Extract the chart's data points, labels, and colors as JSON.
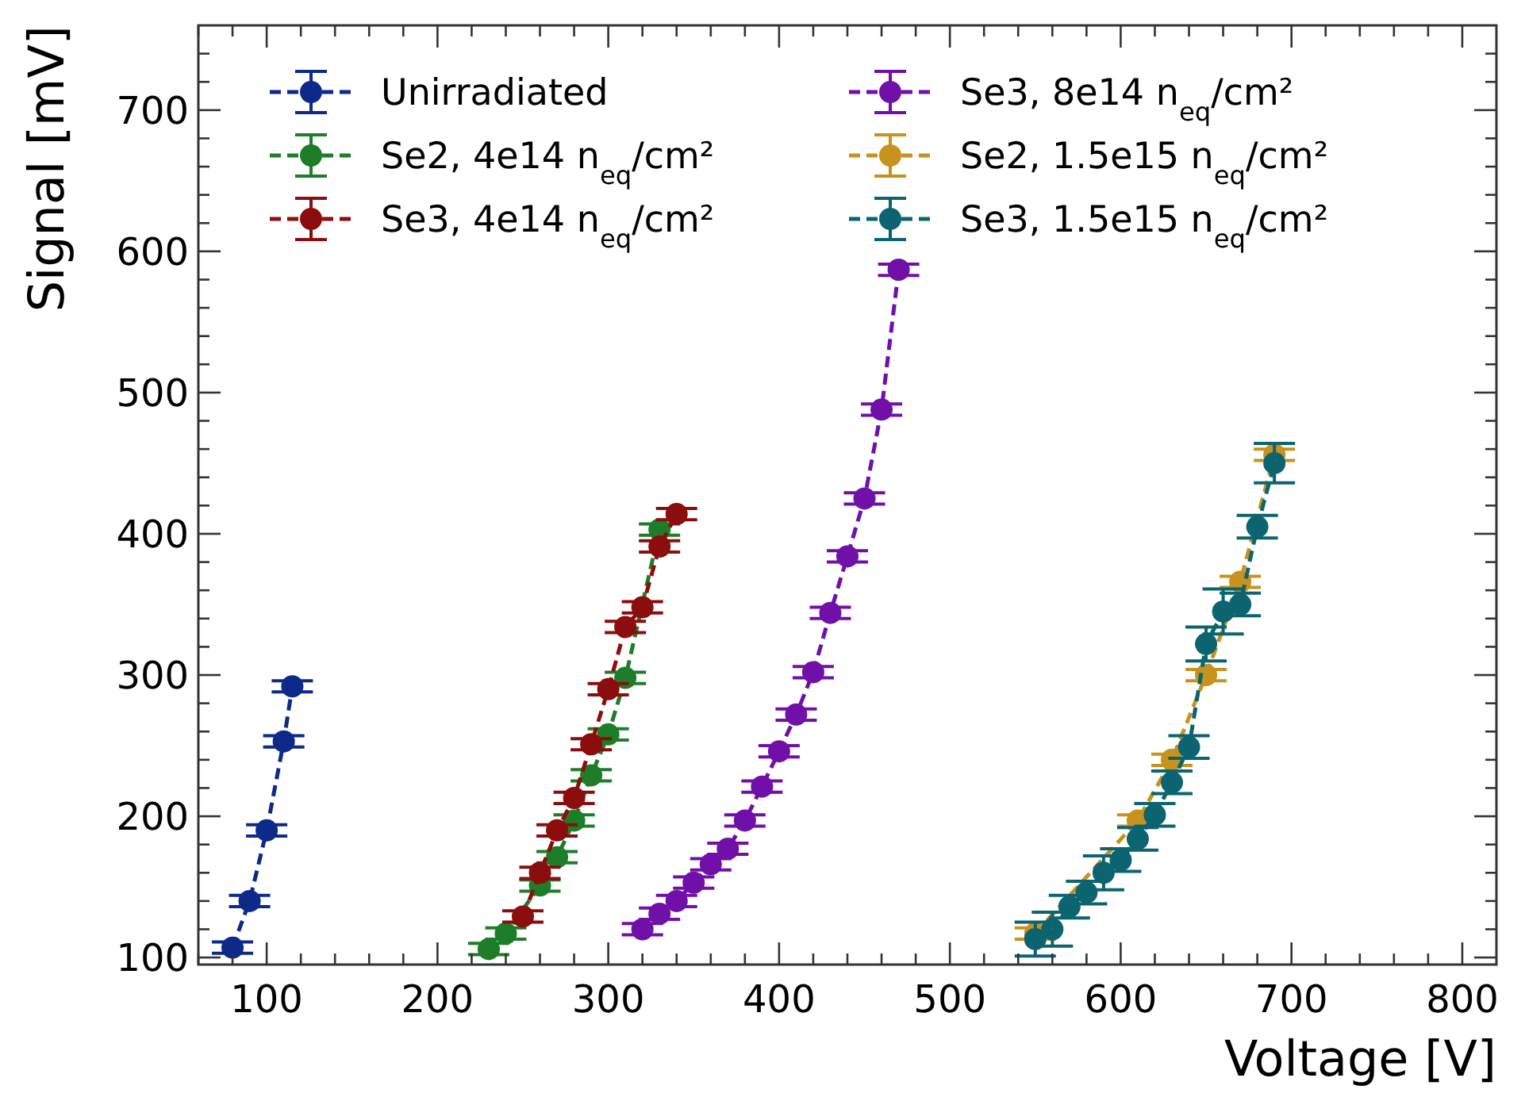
{
  "chart_data": {
    "type": "line",
    "xlabel": "Voltage [V]",
    "ylabel": "Signal [mV]",
    "xlim": [
      60,
      820
    ],
    "ylim": [
      95,
      760
    ],
    "xticks": [
      {
        "value": 60,
        "label": null
      },
      {
        "value": 80,
        "label": null
      },
      100,
      {
        "value": 120,
        "label": null
      },
      {
        "value": 140,
        "label": null
      },
      {
        "value": 160,
        "label": null
      },
      {
        "value": 180,
        "label": null
      },
      200,
      {
        "value": 220,
        "label": null
      },
      {
        "value": 240,
        "label": null
      },
      {
        "value": 260,
        "label": null
      },
      {
        "value": 280,
        "label": null
      },
      300,
      {
        "value": 320,
        "label": null
      },
      {
        "value": 340,
        "label": null
      },
      {
        "value": 360,
        "label": null
      },
      {
        "value": 380,
        "label": null
      },
      400,
      {
        "value": 420,
        "label": null
      },
      {
        "value": 440,
        "label": null
      },
      {
        "value": 460,
        "label": null
      },
      {
        "value": 480,
        "label": null
      },
      500,
      {
        "value": 520,
        "label": null
      },
      {
        "value": 540,
        "label": null
      },
      {
        "value": 560,
        "label": null
      },
      {
        "value": 580,
        "label": null
      },
      600,
      {
        "value": 620,
        "label": null
      },
      {
        "value": 640,
        "label": null
      },
      {
        "value": 660,
        "label": null
      },
      {
        "value": 680,
        "label": null
      },
      700,
      {
        "value": 720,
        "label": null
      },
      {
        "value": 740,
        "label": null
      },
      {
        "value": 760,
        "label": null
      },
      {
        "value": 780,
        "label": null
      },
      800
    ],
    "yticks": [
      100,
      {
        "value": 120,
        "label": null
      },
      {
        "value": 140,
        "label": null
      },
      {
        "value": 160,
        "label": null
      },
      {
        "value": 180,
        "label": null
      },
      200,
      {
        "value": 220,
        "label": null
      },
      {
        "value": 240,
        "label": null
      },
      {
        "value": 260,
        "label": null
      },
      {
        "value": 280,
        "label": null
      },
      300,
      {
        "value": 320,
        "label": null
      },
      {
        "value": 340,
        "label": null
      },
      {
        "value": 360,
        "label": null
      },
      {
        "value": 380,
        "label": null
      },
      400,
      {
        "value": 420,
        "label": null
      },
      {
        "value": 440,
        "label": null
      },
      {
        "value": 460,
        "label": null
      },
      {
        "value": 480,
        "label": null
      },
      500,
      {
        "value": 520,
        "label": null
      },
      {
        "value": 540,
        "label": null
      },
      {
        "value": 560,
        "label": null
      },
      {
        "value": 580,
        "label": null
      },
      600,
      {
        "value": 620,
        "label": null
      },
      {
        "value": 640,
        "label": null
      },
      {
        "value": 660,
        "label": null
      },
      {
        "value": 680,
        "label": null
      },
      700,
      {
        "value": 720,
        "label": null
      },
      {
        "value": 740,
        "label": null
      }
    ],
    "grid": false,
    "legend": "top",
    "marker": "circle",
    "line_style": "dashed",
    "series": [
      {
        "name": "Unirradiated",
        "color": "#0d2a8a",
        "x": [
          80,
          90,
          100,
          110,
          115
        ],
        "values": [
          107,
          140,
          190,
          253,
          292
        ],
        "errors": [
          4,
          4,
          4,
          4,
          4
        ]
      },
      {
        "name": "Se2, 4e14 n$_{eq}$/cm²",
        "color": "#1e7d28",
        "x": [
          230,
          240,
          250,
          260,
          270,
          280,
          290,
          300,
          310,
          330
        ],
        "values": [
          106,
          117,
          null,
          151,
          171,
          197,
          229,
          258,
          298,
          403
        ],
        "errors": [
          4,
          4,
          null,
          4,
          4,
          4,
          4,
          4,
          4,
          4
        ]
      },
      {
        "name": "Se3, 4e14 n$_{eq}$/cm²",
        "color": "#8b0d0d",
        "x": [
          250,
          260,
          270,
          280,
          290,
          300,
          310,
          320,
          330,
          340
        ],
        "values": [
          129,
          160,
          190,
          213,
          251,
          290,
          334,
          348,
          391,
          414
        ],
        "errors": [
          4,
          4,
          4,
          4,
          4,
          4,
          4,
          4,
          4,
          4
        ]
      },
      {
        "name": "Se3, 8e14 n$_{eq}$/cm²",
        "color": "#7010a8",
        "x": [
          320,
          330,
          340,
          350,
          360,
          370,
          380,
          390,
          400,
          410,
          420,
          430,
          440,
          450,
          460,
          470
        ],
        "values": [
          120,
          131,
          140,
          153,
          166,
          177,
          197,
          221,
          246,
          272,
          302,
          344,
          384,
          425,
          488,
          587
        ],
        "errors": [
          4,
          4,
          4,
          4,
          4,
          4,
          4,
          4,
          4,
          4,
          4,
          4,
          4,
          4,
          4,
          4
        ]
      },
      {
        "name": "Se2, 1.5e15 n$_{eq}$/cm²",
        "color": "#c8921e",
        "x": [
          550,
          570,
          590,
          610,
          630,
          650,
          670,
          690
        ],
        "values": [
          117,
          null,
          null,
          197,
          240,
          300,
          366,
          456
        ],
        "errors": [
          4,
          null,
          null,
          4,
          4,
          4,
          4,
          4
        ]
      },
      {
        "name": "Se3, 1.5e15 n$_{eq}$/cm²",
        "color": "#0b6470",
        "x": [
          550,
          560,
          570,
          580,
          590,
          600,
          610,
          620,
          630,
          640,
          650,
          660,
          670,
          680,
          690
        ],
        "values": [
          113,
          120,
          136,
          146,
          160,
          169,
          184,
          201,
          224,
          249,
          322,
          345,
          350,
          405,
          450
        ],
        "errors": [
          12,
          12,
          8,
          8,
          12,
          8,
          8,
          8,
          8,
          8,
          12,
          16,
          8,
          8,
          14
        ]
      }
    ]
  }
}
